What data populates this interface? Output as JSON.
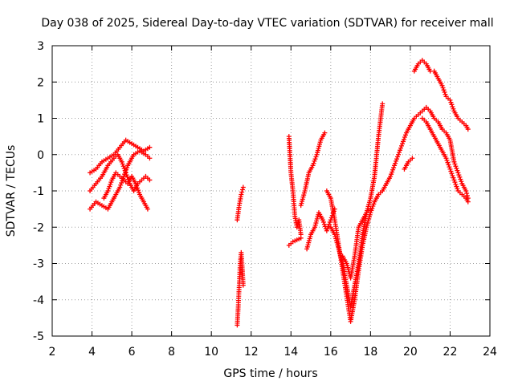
{
  "chart_data": {
    "type": "scatter",
    "title": "Day 038 of 2025, Sidereal Day-to-day VTEC variation (SDTVAR) for receiver mall",
    "xlabel": "GPS time / hours",
    "ylabel": "SDTVAR / TECUs",
    "xlim": [
      2,
      24
    ],
    "ylim": [
      -5,
      3
    ],
    "xticks": [
      "2",
      "4",
      "6",
      "8",
      "10",
      "12",
      "14",
      "16",
      "18",
      "20",
      "22",
      "24"
    ],
    "yticks": [
      "-5",
      "-4",
      "-3",
      "-2",
      "-1",
      "0",
      "1",
      "2",
      "3"
    ],
    "grid": true,
    "marker": "plus",
    "color": "#ff0000",
    "series": [
      {
        "x": [
          3.9,
          4.2,
          4.5,
          4.8,
          5.1,
          5.4,
          5.7,
          6.0,
          6.3,
          6.6,
          6.9
        ],
        "y": [
          -0.5,
          -0.4,
          -0.2,
          -0.1,
          0.0,
          0.2,
          0.4,
          0.3,
          0.2,
          0.1,
          0.2
        ]
      },
      {
        "x": [
          3.9,
          4.2,
          4.5,
          4.8,
          5.1,
          5.4,
          5.6,
          5.8,
          6.1,
          6.4,
          6.7,
          6.9
        ],
        "y": [
          -1.5,
          -1.3,
          -1.4,
          -1.5,
          -1.2,
          -0.9,
          -0.6,
          -0.3,
          0.0,
          0.1,
          0.0,
          -0.1
        ]
      },
      {
        "x": [
          3.9,
          4.2,
          4.5,
          4.8,
          5.1,
          5.3,
          5.5,
          5.7,
          5.9,
          6.1,
          6.3,
          6.5,
          6.7,
          6.9
        ],
        "y": [
          -1.0,
          -0.8,
          -0.6,
          -0.3,
          -0.1,
          0.0,
          -0.2,
          -0.5,
          -0.8,
          -1.0,
          -0.8,
          -0.7,
          -0.6,
          -0.7
        ]
      },
      {
        "x": [
          4.6,
          4.8,
          5.0,
          5.2,
          5.4,
          5.6,
          5.8,
          6.0,
          6.2,
          6.4,
          6.6,
          6.8
        ],
        "y": [
          -1.2,
          -1.0,
          -0.7,
          -0.5,
          -0.6,
          -0.7,
          -0.8,
          -0.6,
          -0.8,
          -1.1,
          -1.3,
          -1.5
        ]
      },
      {
        "x": [
          11.3,
          11.4,
          11.5,
          11.6
        ],
        "y": [
          -1.8,
          -1.4,
          -1.1,
          -0.9
        ]
      },
      {
        "x": [
          11.3,
          11.35,
          11.4,
          11.45,
          11.5,
          11.55,
          11.6
        ],
        "y": [
          -4.7,
          -4.2,
          -3.6,
          -3.0,
          -2.7,
          -3.1,
          -3.6
        ]
      },
      {
        "x": [
          13.9,
          14.0,
          14.1,
          14.2,
          14.3,
          14.4,
          14.5
        ],
        "y": [
          0.5,
          -0.5,
          -1.0,
          -1.7,
          -2.0,
          -1.8,
          -2.2
        ]
      },
      {
        "x": [
          13.9,
          14.1,
          14.3,
          14.5
        ],
        "y": [
          -2.5,
          -2.4,
          -2.35,
          -2.3
        ]
      },
      {
        "x": [
          14.5,
          14.7,
          14.9,
          15.1,
          15.3,
          15.5,
          15.7
        ],
        "y": [
          -1.4,
          -1.0,
          -0.5,
          -0.3,
          0.0,
          0.4,
          0.6
        ]
      },
      {
        "x": [
          14.8,
          15.0,
          15.2,
          15.4,
          15.6,
          15.8,
          16.0,
          16.2
        ],
        "y": [
          -2.6,
          -2.2,
          -2.0,
          -1.6,
          -1.8,
          -2.1,
          -1.8,
          -1.5
        ]
      },
      {
        "x": [
          15.8,
          16.0,
          16.2,
          16.4,
          16.6,
          16.8,
          17.0,
          17.2,
          17.4,
          17.6,
          17.8,
          18.0,
          18.2,
          18.4,
          18.6,
          18.8,
          19.0,
          19.2,
          19.4,
          19.6,
          19.8,
          20.0,
          20.2,
          20.4,
          20.6,
          20.8,
          21.0,
          21.2,
          21.4,
          21.6,
          21.8,
          22.0,
          22.2,
          22.4,
          22.6,
          22.8,
          22.9
        ],
        "y": [
          -1.0,
          -1.2,
          -1.8,
          -2.5,
          -3.2,
          -3.9,
          -4.6,
          -4.0,
          -3.2,
          -2.5,
          -2.0,
          -1.6,
          -1.3,
          -1.1,
          -1.0,
          -0.8,
          -0.6,
          -0.3,
          0.0,
          0.3,
          0.6,
          0.8,
          1.0,
          1.1,
          1.2,
          1.3,
          1.2,
          1.0,
          0.9,
          0.7,
          0.6,
          0.4,
          -0.2,
          -0.5,
          -0.8,
          -1.0,
          -1.2
        ]
      },
      {
        "x": [
          16.0,
          16.2,
          16.4,
          16.6,
          16.8,
          17.0,
          17.2,
          17.4,
          17.6,
          17.8,
          18.0,
          18.2,
          18.4,
          18.6
        ],
        "y": [
          -2.0,
          -2.2,
          -2.6,
          -3.0,
          -3.6,
          -4.2,
          -3.6,
          -3.0,
          -2.2,
          -1.6,
          -1.2,
          -0.6,
          0.5,
          1.4
        ]
      },
      {
        "x": [
          16.6,
          16.8,
          17.0,
          17.2,
          17.4,
          17.6,
          17.8,
          18.0
        ],
        "y": [
          -2.8,
          -3.0,
          -3.4,
          -2.8,
          -2.0,
          -1.8,
          -1.6,
          -1.5
        ]
      },
      {
        "x": [
          19.7,
          19.9,
          20.1
        ],
        "y": [
          -0.4,
          -0.2,
          -0.1
        ]
      },
      {
        "x": [
          20.6,
          20.8,
          21.0,
          21.2,
          21.4,
          21.6,
          21.8,
          22.0,
          22.2,
          22.4,
          22.6,
          22.8,
          22.9
        ],
        "y": [
          1.0,
          0.9,
          0.7,
          0.5,
          0.3,
          0.1,
          -0.1,
          -0.4,
          -0.7,
          -1.0,
          -1.1,
          -1.2,
          -1.3
        ]
      },
      {
        "x": [
          20.2,
          20.4,
          20.6,
          20.8,
          21.0,
          21.2,
          21.4,
          21.6,
          21.8,
          22.0,
          22.2,
          22.4,
          22.6,
          22.8,
          22.9
        ],
        "y": [
          2.3,
          2.5,
          2.6,
          2.5,
          2.3,
          2.3,
          2.1,
          1.9,
          1.6,
          1.5,
          1.2,
          1.0,
          0.9,
          0.8,
          0.7
        ]
      }
    ]
  }
}
